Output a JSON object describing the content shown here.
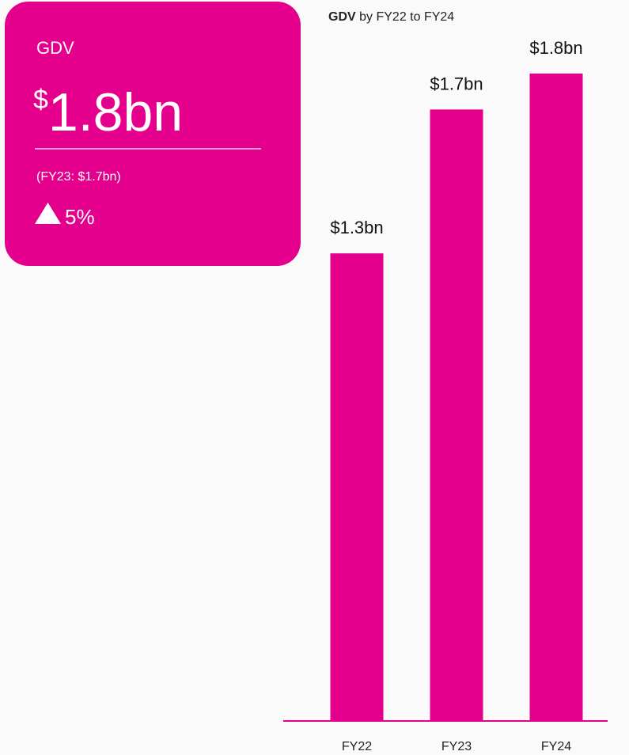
{
  "kpi": {
    "label": "GDV",
    "currency": "$",
    "amount": "1.8bn",
    "comparison": "(FY23: $1.7bn)",
    "change": "5%"
  },
  "chart_data": {
    "type": "bar",
    "title": [
      "GDV",
      "by FY22 to FY24"
    ],
    "categories": [
      "FY22",
      "FY23",
      "FY24"
    ],
    "values": [
      1.3,
      1.7,
      1.8
    ],
    "value_labels": [
      "$1.3bn",
      "$1.7bn",
      "$1.8bn"
    ],
    "color": "#e4008c",
    "ylim": [
      0,
      2
    ]
  }
}
